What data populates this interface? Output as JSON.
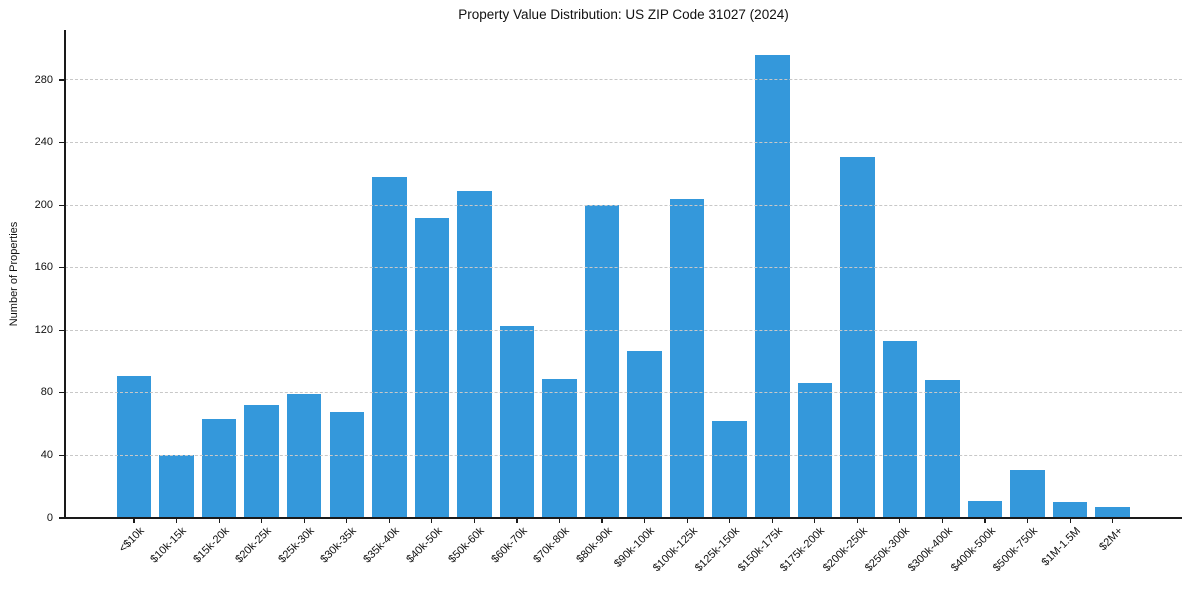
{
  "chart_data": {
    "type": "bar",
    "title": "Property Value Distribution: US ZIP Code 31027 (2024)",
    "xlabel": "",
    "ylabel": "Number of Properties",
    "categories": [
      "<$10k",
      "$10k-15k",
      "$15k-20k",
      "$20k-25k",
      "$25k-30k",
      "$30k-35k",
      "$35k-40k",
      "$40k-50k",
      "$50k-60k",
      "$60k-70k",
      "$70k-80k",
      "$80k-90k",
      "$90k-100k",
      "$100k-125k",
      "$125k-150k",
      "$150k-175k",
      "$175k-200k",
      "$200k-250k",
      "$250k-300k",
      "$300k-400k",
      "$400k-500k",
      "$500k-750k",
      "$1M-1.5M",
      "$2M+"
    ],
    "values": [
      91,
      40,
      63,
      72,
      79,
      68,
      218,
      192,
      209,
      123,
      89,
      200,
      107,
      204,
      62,
      296,
      86,
      231,
      113,
      88,
      11,
      31,
      10,
      7
    ],
    "ylim": [
      0,
      312
    ],
    "yticks": [
      0,
      40,
      80,
      120,
      160,
      200,
      240,
      280
    ],
    "grid": "horizontal-dashed",
    "grid_above_bars": true,
    "legend": "none",
    "bar_color": "#3498db",
    "grid_color": "#c8c8c8",
    "axis_color": "#1a1a1a",
    "text_color": "#111111"
  }
}
